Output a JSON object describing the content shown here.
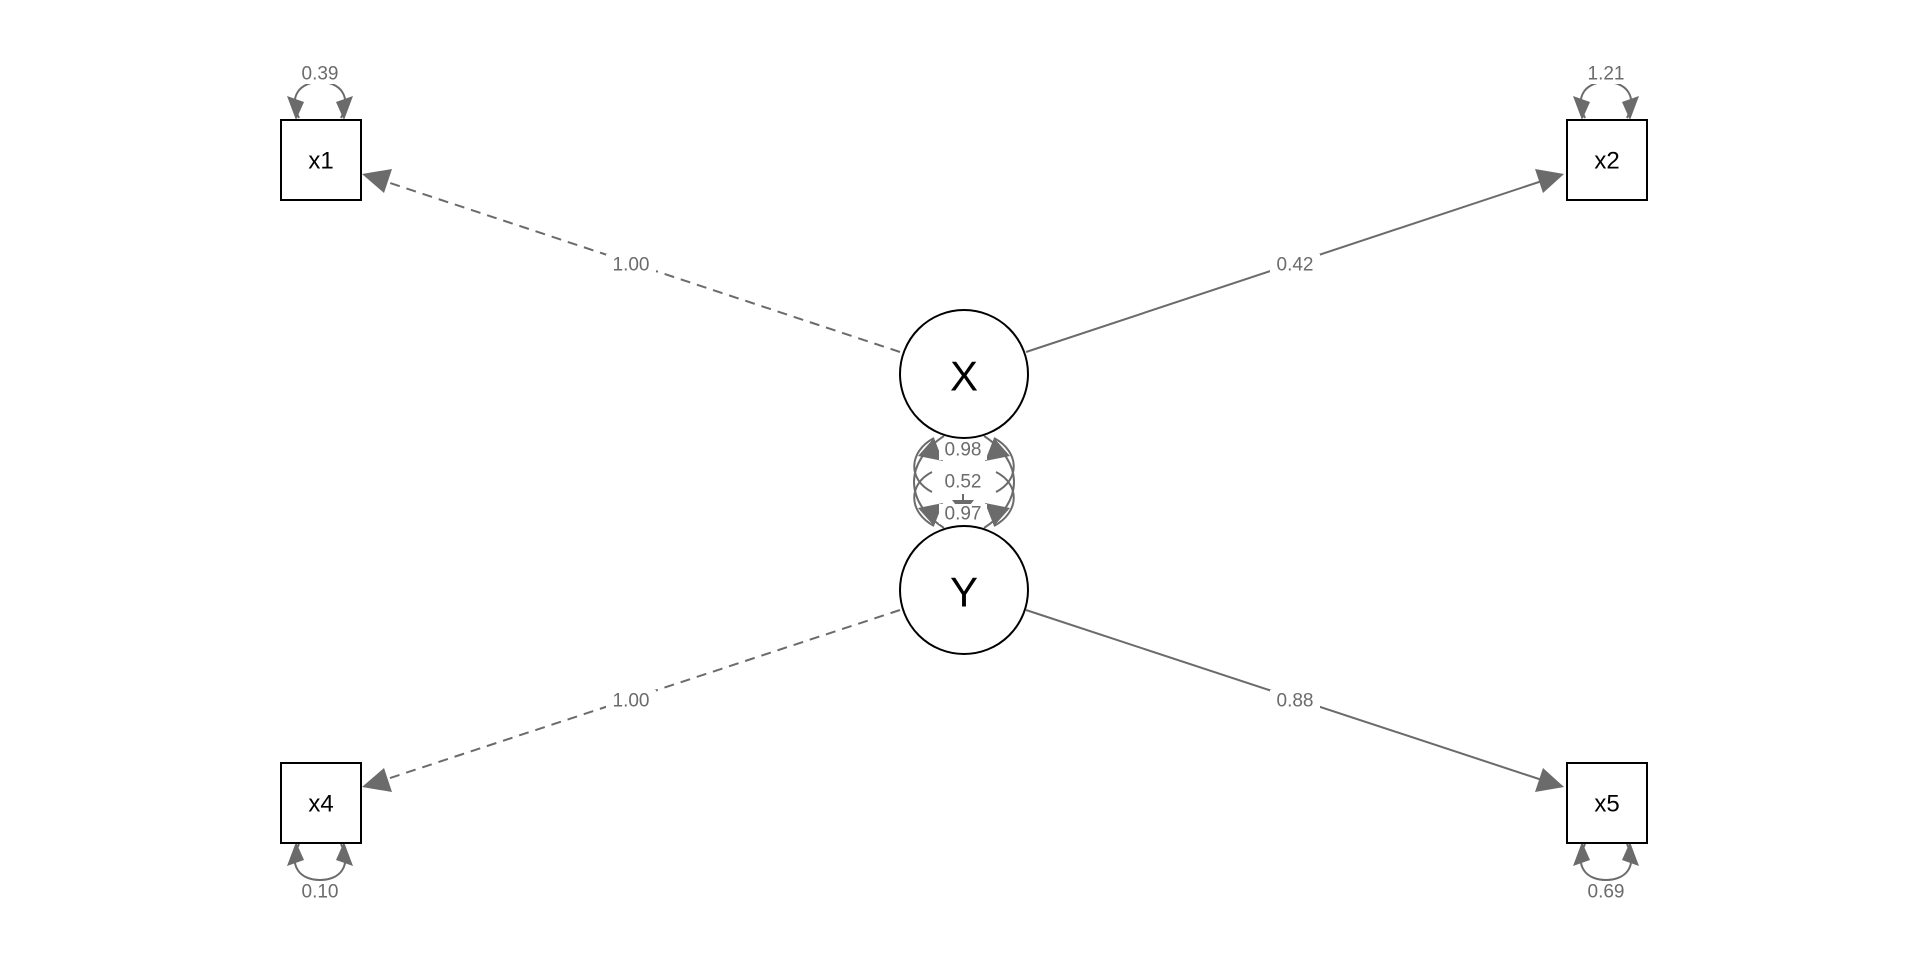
{
  "nodes": {
    "x1": "x1",
    "x2": "x2",
    "x4": "x4",
    "x5": "x5",
    "X": "X",
    "Y": "Y"
  },
  "loadings": {
    "X_x1": "1.00",
    "X_x2": "0.42",
    "Y_x4": "1.00",
    "Y_x5": "0.88"
  },
  "variances": {
    "x1": "0.39",
    "x2": "1.21",
    "x4": "0.10",
    "x5": "0.69",
    "X": "0.98",
    "Y": "0.97"
  },
  "covariances": {
    "X_Y": "0.52"
  },
  "colors": {
    "edge": "#6b6b6b",
    "node_border": "#000000",
    "background": "#ffffff"
  }
}
